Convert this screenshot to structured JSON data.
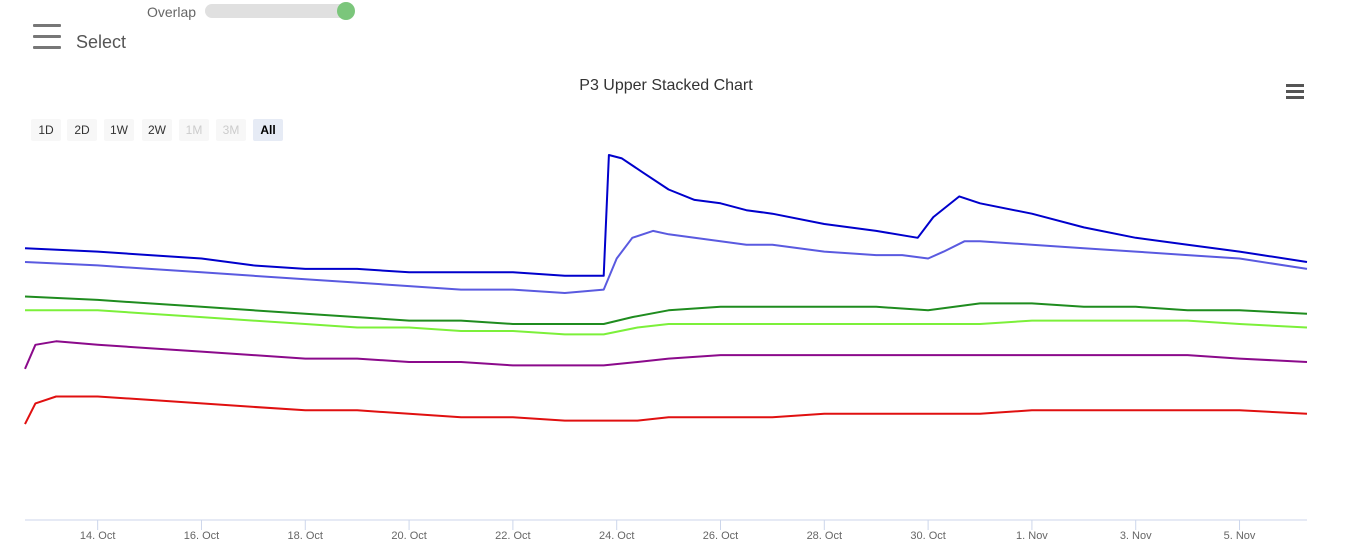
{
  "overlap": {
    "label": "Overlap",
    "enabled": true
  },
  "select_label": "Select",
  "range_selector": {
    "buttons": [
      {
        "label": "1D",
        "disabled": false,
        "selected": false
      },
      {
        "label": "2D",
        "disabled": false,
        "selected": false
      },
      {
        "label": "1W",
        "disabled": false,
        "selected": false
      },
      {
        "label": "2W",
        "disabled": false,
        "selected": false
      },
      {
        "label": "1M",
        "disabled": true,
        "selected": false
      },
      {
        "label": "3M",
        "disabled": true,
        "selected": false
      },
      {
        "label": "All",
        "disabled": false,
        "selected": true
      }
    ]
  },
  "colors": {
    "series": [
      "#0000cc",
      "#5a5ae0",
      "#1f8c1f",
      "#7cf03a",
      "#8b0a8b",
      "#e01010"
    ]
  },
  "chart_data": {
    "type": "line",
    "title": "P3 Upper Stacked Chart",
    "x_axis": {
      "unit": "day",
      "range": [
        12.6,
        37.3
      ],
      "ticks": [
        {
          "x": 14,
          "label": "14. Oct"
        },
        {
          "x": 16,
          "label": "16. Oct"
        },
        {
          "x": 18,
          "label": "18. Oct"
        },
        {
          "x": 20,
          "label": "20. Oct"
        },
        {
          "x": 22,
          "label": "22. Oct"
        },
        {
          "x": 24,
          "label": "24. Oct"
        },
        {
          "x": 26,
          "label": "26. Oct"
        },
        {
          "x": 28,
          "label": "28. Oct"
        },
        {
          "x": 30,
          "label": "30. Oct"
        },
        {
          "x": 32,
          "label": "1. Nov"
        },
        {
          "x": 34,
          "label": "3. Nov"
        },
        {
          "x": 36,
          "label": "5. Nov"
        }
      ]
    },
    "y_axis": {
      "range": [
        0,
        100
      ],
      "visible": false
    },
    "series": [
      {
        "points": [
          [
            12.6,
            73
          ],
          [
            14,
            72
          ],
          [
            15,
            71
          ],
          [
            16,
            70
          ],
          [
            17,
            68
          ],
          [
            18,
            67
          ],
          [
            19,
            67
          ],
          [
            20,
            66
          ],
          [
            21,
            66
          ],
          [
            22,
            66
          ],
          [
            23,
            65
          ],
          [
            23.75,
            65
          ],
          [
            23.85,
            100
          ],
          [
            24.1,
            99
          ],
          [
            24.5,
            95
          ],
          [
            25,
            90
          ],
          [
            25.5,
            87
          ],
          [
            26,
            86
          ],
          [
            26.5,
            84
          ],
          [
            27,
            83
          ],
          [
            28,
            80
          ],
          [
            29,
            78
          ],
          [
            29.8,
            76
          ],
          [
            30.1,
            82
          ],
          [
            30.6,
            88
          ],
          [
            31,
            86
          ],
          [
            32,
            83
          ],
          [
            33,
            79
          ],
          [
            34,
            76
          ],
          [
            35,
            74
          ],
          [
            36,
            72
          ],
          [
            37.3,
            69
          ]
        ]
      },
      {
        "points": [
          [
            12.6,
            69
          ],
          [
            14,
            68
          ],
          [
            15,
            67
          ],
          [
            16,
            66
          ],
          [
            17,
            65
          ],
          [
            18,
            64
          ],
          [
            19,
            63
          ],
          [
            20,
            62
          ],
          [
            21,
            61
          ],
          [
            22,
            61
          ],
          [
            23,
            60
          ],
          [
            23.75,
            61
          ],
          [
            24,
            70
          ],
          [
            24.3,
            76
          ],
          [
            24.7,
            78
          ],
          [
            25,
            77
          ],
          [
            25.5,
            76
          ],
          [
            26,
            75
          ],
          [
            26.5,
            74
          ],
          [
            27,
            74
          ],
          [
            28,
            72
          ],
          [
            29,
            71
          ],
          [
            29.5,
            71
          ],
          [
            30.0,
            70
          ],
          [
            30.3,
            72
          ],
          [
            30.7,
            75
          ],
          [
            31,
            75
          ],
          [
            32,
            74
          ],
          [
            33,
            73
          ],
          [
            34,
            72
          ],
          [
            35,
            71
          ],
          [
            36,
            70
          ],
          [
            37.3,
            67
          ]
        ]
      },
      {
        "points": [
          [
            12.6,
            59
          ],
          [
            14,
            58
          ],
          [
            15,
            57
          ],
          [
            16,
            56
          ],
          [
            17,
            55
          ],
          [
            18,
            54
          ],
          [
            19,
            53
          ],
          [
            20,
            52
          ],
          [
            21,
            52
          ],
          [
            22,
            51
          ],
          [
            23,
            51
          ],
          [
            23.75,
            51
          ],
          [
            24.3,
            53
          ],
          [
            25,
            55
          ],
          [
            26,
            56
          ],
          [
            27,
            56
          ],
          [
            28,
            56
          ],
          [
            29,
            56
          ],
          [
            30,
            55
          ],
          [
            31,
            57
          ],
          [
            32,
            57
          ],
          [
            33,
            56
          ],
          [
            34,
            56
          ],
          [
            35,
            55
          ],
          [
            36,
            55
          ],
          [
            37.3,
            54
          ]
        ]
      },
      {
        "points": [
          [
            12.6,
            55
          ],
          [
            14,
            55
          ],
          [
            15,
            54
          ],
          [
            16,
            53
          ],
          [
            17,
            52
          ],
          [
            18,
            51
          ],
          [
            19,
            50
          ],
          [
            20,
            50
          ],
          [
            21,
            49
          ],
          [
            22,
            49
          ],
          [
            23,
            48
          ],
          [
            23.75,
            48
          ],
          [
            24.4,
            50
          ],
          [
            25,
            51
          ],
          [
            26,
            51
          ],
          [
            27,
            51
          ],
          [
            28,
            51
          ],
          [
            29,
            51
          ],
          [
            30,
            51
          ],
          [
            31,
            51
          ],
          [
            32,
            52
          ],
          [
            33,
            52
          ],
          [
            34,
            52
          ],
          [
            35,
            52
          ],
          [
            36,
            51
          ],
          [
            37.3,
            50
          ]
        ]
      },
      {
        "points": [
          [
            12.6,
            38
          ],
          [
            12.8,
            45
          ],
          [
            13.2,
            46
          ],
          [
            14,
            45
          ],
          [
            15,
            44
          ],
          [
            16,
            43
          ],
          [
            17,
            42
          ],
          [
            18,
            41
          ],
          [
            19,
            41
          ],
          [
            20,
            40
          ],
          [
            21,
            40
          ],
          [
            22,
            39
          ],
          [
            23,
            39
          ],
          [
            23.75,
            39
          ],
          [
            24.4,
            40
          ],
          [
            25,
            41
          ],
          [
            26,
            42
          ],
          [
            27,
            42
          ],
          [
            28,
            42
          ],
          [
            29,
            42
          ],
          [
            30,
            42
          ],
          [
            31,
            42
          ],
          [
            32,
            42
          ],
          [
            33,
            42
          ],
          [
            34,
            42
          ],
          [
            35,
            42
          ],
          [
            36,
            41
          ],
          [
            37.3,
            40
          ]
        ]
      },
      {
        "points": [
          [
            12.6,
            22
          ],
          [
            12.8,
            28
          ],
          [
            13.2,
            30
          ],
          [
            14,
            30
          ],
          [
            15,
            29
          ],
          [
            16,
            28
          ],
          [
            17,
            27
          ],
          [
            18,
            26
          ],
          [
            19,
            26
          ],
          [
            20,
            25
          ],
          [
            21,
            24
          ],
          [
            22,
            24
          ],
          [
            23,
            23
          ],
          [
            23.75,
            23
          ],
          [
            24.4,
            23
          ],
          [
            25,
            24
          ],
          [
            26,
            24
          ],
          [
            27,
            24
          ],
          [
            28,
            25
          ],
          [
            29,
            25
          ],
          [
            30,
            25
          ],
          [
            31,
            25
          ],
          [
            32,
            26
          ],
          [
            33,
            26
          ],
          [
            34,
            26
          ],
          [
            35,
            26
          ],
          [
            36,
            26
          ],
          [
            37.3,
            25
          ]
        ]
      }
    ]
  }
}
